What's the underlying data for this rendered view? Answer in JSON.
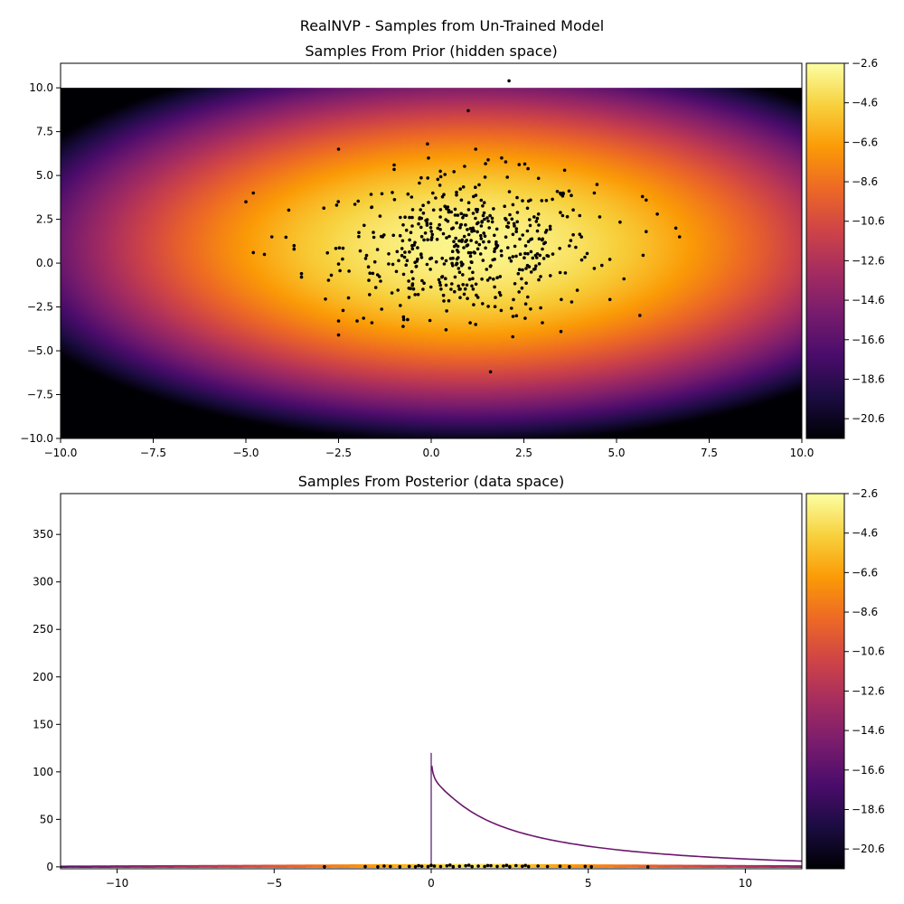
{
  "figure": {
    "suptitle": "RealNVP - Samples from Un-Trained Model"
  },
  "colormap": {
    "name": "inferno",
    "stops": [
      "#000004",
      "#1b0c41",
      "#4a0c6b",
      "#781c6d",
      "#a52c60",
      "#cf4446",
      "#ed6925",
      "#fb9b06",
      "#f7d13d",
      "#fcffa4"
    ]
  },
  "chart_data": [
    {
      "type": "scatter",
      "title": "Samples From Prior (hidden space)",
      "xlabel": "",
      "ylabel": "",
      "xlim": [
        -10,
        10
      ],
      "ylim": [
        -10,
        11.4
      ],
      "xticks": [
        -10,
        -7.5,
        -5,
        -2.5,
        0,
        2.5,
        5,
        7.5,
        10
      ],
      "xtick_labels": [
        "−10.0",
        "−7.5",
        "−5.0",
        "−2.5",
        "0.0",
        "2.5",
        "5.0",
        "7.5",
        "10.0"
      ],
      "yticks": [
        -10,
        -7.5,
        -5,
        -2.5,
        0,
        2.5,
        5,
        7.5,
        10
      ],
      "ytick_labels": [
        "−10.0",
        "−7.5",
        "−5.0",
        "−2.5",
        "0.0",
        "2.5",
        "5.0",
        "7.5",
        "10.0"
      ],
      "background": "log-density heatmap (Gaussian prior, center ≈ (1, 1)) over x∈[-10,10], y∈[-10,10]",
      "colorbar": {
        "ticks": [
          -2.6,
          -4.6,
          -6.6,
          -8.6,
          -10.6,
          -12.6,
          -14.6,
          -16.6,
          -18.6,
          -20.6
        ],
        "tick_labels": [
          "−2.6",
          "−4.6",
          "−6.6",
          "−8.6",
          "−10.6",
          "−12.6",
          "−14.6",
          "−16.6",
          "−18.6",
          "−20.6"
        ],
        "range": [
          -21.6,
          -2.6
        ]
      },
      "points_note": "Approximately 500 samples from a 2D Gaussian (mean ≈ (1, 1), std ≈ (1.7, 2.0)); individually visible outliers listed below",
      "sample_count": 500,
      "distribution": {
        "mean": [
          1.0,
          1.0
        ],
        "std": [
          1.7,
          2.0
        ]
      },
      "outliers": [
        [
          2.1,
          10.4
        ],
        [
          1.0,
          8.7
        ],
        [
          -2.5,
          6.5
        ],
        [
          -0.1,
          6.8
        ],
        [
          -5.0,
          3.5
        ],
        [
          -4.8,
          4.0
        ],
        [
          -4.8,
          0.6
        ],
        [
          -4.5,
          0.5
        ],
        [
          -3.7,
          1.0
        ],
        [
          -3.5,
          -0.6
        ],
        [
          -2.5,
          -3.3
        ],
        [
          -2.5,
          -4.1
        ],
        [
          1.6,
          -6.2
        ],
        [
          2.2,
          -4.2
        ],
        [
          3.5,
          -3.9
        ],
        [
          5.2,
          -0.9
        ],
        [
          6.7,
          1.5
        ],
        [
          6.6,
          2.0
        ],
        [
          6.1,
          2.8
        ],
        [
          5.8,
          3.6
        ],
        [
          5.7,
          3.8
        ],
        [
          5.8,
          1.8
        ],
        [
          3.6,
          5.3
        ],
        [
          4.4,
          4.0
        ],
        [
          1.9,
          6.0
        ],
        [
          1.2,
          6.5
        ],
        [
          -1.0,
          5.6
        ],
        [
          -4.3,
          1.5
        ],
        [
          -3.7,
          0.8
        ],
        [
          -2.0,
          -3.3
        ],
        [
          -1.6,
          -3.4
        ],
        [
          0.4,
          -3.8
        ],
        [
          1.2,
          -3.5
        ],
        [
          2.3,
          -3.0
        ],
        [
          3.0,
          -3.4
        ],
        [
          4.4,
          -0.3
        ]
      ]
    },
    {
      "type": "scatter",
      "title": "Samples From Posterior (data space)",
      "xlabel": "",
      "ylabel": "",
      "xlim": [
        -11.8,
        11.8
      ],
      "ylim": [
        -2,
        393
      ],
      "xticks": [
        -10,
        -5,
        0,
        5,
        10
      ],
      "xtick_labels": [
        "−10",
        "−5",
        "0",
        "5",
        "10"
      ],
      "yticks": [
        0,
        50,
        100,
        150,
        200,
        250,
        300,
        350
      ],
      "ytick_labels": [
        "0",
        "50",
        "100",
        "150",
        "200",
        "250",
        "300",
        "350"
      ],
      "background": "transformed density: thin band near y≈0 (orange center, purple tails) and a thin purple curve rising from (12, 0) to (0, 120)",
      "colorbar": {
        "ticks": [
          -2.6,
          -4.6,
          -6.6,
          -8.6,
          -10.6,
          -12.6,
          -14.6,
          -16.6,
          -18.6,
          -20.6
        ],
        "tick_labels": [
          "−2.6",
          "−4.6",
          "−6.6",
          "−8.6",
          "−10.6",
          "−12.6",
          "−14.6",
          "−16.6",
          "−18.6",
          "−20.6"
        ],
        "range": [
          -21.6,
          -2.6
        ]
      },
      "points_note": "Samples collapse onto y≈0; x spans ≈ -3.5 to 7",
      "points": [
        [
          -3.4,
          0.2
        ],
        [
          -2.1,
          0.3
        ],
        [
          -1.7,
          0.1
        ],
        [
          -1.3,
          0.4
        ],
        [
          -1.0,
          0.2
        ],
        [
          -0.7,
          0.5
        ],
        [
          -0.5,
          0.1
        ],
        [
          -0.3,
          0.6
        ],
        [
          -0.1,
          0.3
        ],
        [
          0.1,
          0.8
        ],
        [
          0.3,
          0.4
        ],
        [
          0.5,
          1.0
        ],
        [
          0.7,
          0.2
        ],
        [
          0.9,
          0.6
        ],
        [
          1.1,
          1.1
        ],
        [
          1.3,
          0.3
        ],
        [
          1.5,
          0.8
        ],
        [
          1.7,
          0.4
        ],
        [
          1.9,
          1.2
        ],
        [
          2.1,
          0.5
        ],
        [
          2.3,
          0.9
        ],
        [
          2.5,
          0.2
        ],
        [
          2.7,
          1.3
        ],
        [
          2.9,
          0.6
        ],
        [
          3.1,
          0.3
        ],
        [
          3.4,
          0.9
        ],
        [
          3.7,
          0.4
        ],
        [
          4.1,
          0.7
        ],
        [
          4.4,
          0.2
        ],
        [
          4.9,
          0.5
        ],
        [
          5.1,
          0.1
        ],
        [
          6.9,
          0.0
        ],
        [
          0.0,
          1.6
        ],
        [
          0.6,
          1.9
        ],
        [
          1.2,
          1.7
        ],
        [
          1.8,
          1.4
        ],
        [
          2.4,
          1.6
        ],
        [
          -0.4,
          1.2
        ],
        [
          -1.5,
          0.9
        ],
        [
          3.0,
          1.5
        ]
      ]
    }
  ]
}
